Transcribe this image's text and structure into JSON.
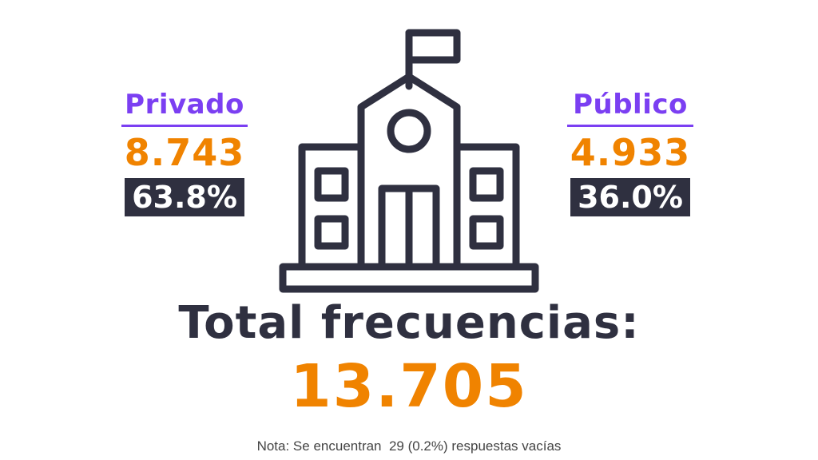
{
  "colors": {
    "purple": "#7b3ff2",
    "orange": "#f08300",
    "dark": "#2f3040",
    "note": "#444444",
    "background": "#ffffff"
  },
  "privado": {
    "label": "Privado",
    "value": "8.743",
    "percent": "63.8%"
  },
  "publico": {
    "label": "Público",
    "value": "4.933",
    "percent": "36.0%"
  },
  "icon": "school-building-icon",
  "total": {
    "label": "Total frecuencias:",
    "value": "13.705"
  },
  "note": "Nota: Se encuentran  29 (0.2%) respuestas vacías"
}
